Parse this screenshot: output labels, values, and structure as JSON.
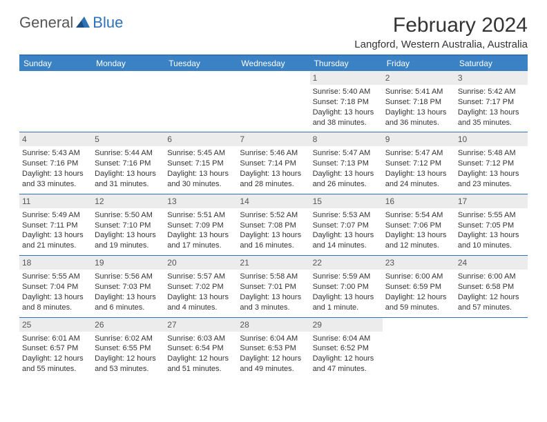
{
  "brand": {
    "general": "General",
    "blue": "Blue"
  },
  "title": "February 2024",
  "location": "Langford, Western Australia, Australia",
  "colors": {
    "accent": "#2d73b8",
    "header_bg": "#3b82c4",
    "daynum_bg": "#ececec",
    "text": "#333333"
  },
  "typography": {
    "title_size": 30,
    "location_size": 15,
    "cell_size": 11
  },
  "calendar": {
    "day_names": [
      "Sunday",
      "Monday",
      "Tuesday",
      "Wednesday",
      "Thursday",
      "Friday",
      "Saturday"
    ],
    "weeks": [
      [
        {
          "num": "",
          "sunrise": "",
          "sunset": "",
          "daylight": ""
        },
        {
          "num": "",
          "sunrise": "",
          "sunset": "",
          "daylight": ""
        },
        {
          "num": "",
          "sunrise": "",
          "sunset": "",
          "daylight": ""
        },
        {
          "num": "",
          "sunrise": "",
          "sunset": "",
          "daylight": ""
        },
        {
          "num": "1",
          "sunrise": "Sunrise: 5:40 AM",
          "sunset": "Sunset: 7:18 PM",
          "daylight": "Daylight: 13 hours and 38 minutes."
        },
        {
          "num": "2",
          "sunrise": "Sunrise: 5:41 AM",
          "sunset": "Sunset: 7:18 PM",
          "daylight": "Daylight: 13 hours and 36 minutes."
        },
        {
          "num": "3",
          "sunrise": "Sunrise: 5:42 AM",
          "sunset": "Sunset: 7:17 PM",
          "daylight": "Daylight: 13 hours and 35 minutes."
        }
      ],
      [
        {
          "num": "4",
          "sunrise": "Sunrise: 5:43 AM",
          "sunset": "Sunset: 7:16 PM",
          "daylight": "Daylight: 13 hours and 33 minutes."
        },
        {
          "num": "5",
          "sunrise": "Sunrise: 5:44 AM",
          "sunset": "Sunset: 7:16 PM",
          "daylight": "Daylight: 13 hours and 31 minutes."
        },
        {
          "num": "6",
          "sunrise": "Sunrise: 5:45 AM",
          "sunset": "Sunset: 7:15 PM",
          "daylight": "Daylight: 13 hours and 30 minutes."
        },
        {
          "num": "7",
          "sunrise": "Sunrise: 5:46 AM",
          "sunset": "Sunset: 7:14 PM",
          "daylight": "Daylight: 13 hours and 28 minutes."
        },
        {
          "num": "8",
          "sunrise": "Sunrise: 5:47 AM",
          "sunset": "Sunset: 7:13 PM",
          "daylight": "Daylight: 13 hours and 26 minutes."
        },
        {
          "num": "9",
          "sunrise": "Sunrise: 5:47 AM",
          "sunset": "Sunset: 7:12 PM",
          "daylight": "Daylight: 13 hours and 24 minutes."
        },
        {
          "num": "10",
          "sunrise": "Sunrise: 5:48 AM",
          "sunset": "Sunset: 7:12 PM",
          "daylight": "Daylight: 13 hours and 23 minutes."
        }
      ],
      [
        {
          "num": "11",
          "sunrise": "Sunrise: 5:49 AM",
          "sunset": "Sunset: 7:11 PM",
          "daylight": "Daylight: 13 hours and 21 minutes."
        },
        {
          "num": "12",
          "sunrise": "Sunrise: 5:50 AM",
          "sunset": "Sunset: 7:10 PM",
          "daylight": "Daylight: 13 hours and 19 minutes."
        },
        {
          "num": "13",
          "sunrise": "Sunrise: 5:51 AM",
          "sunset": "Sunset: 7:09 PM",
          "daylight": "Daylight: 13 hours and 17 minutes."
        },
        {
          "num": "14",
          "sunrise": "Sunrise: 5:52 AM",
          "sunset": "Sunset: 7:08 PM",
          "daylight": "Daylight: 13 hours and 16 minutes."
        },
        {
          "num": "15",
          "sunrise": "Sunrise: 5:53 AM",
          "sunset": "Sunset: 7:07 PM",
          "daylight": "Daylight: 13 hours and 14 minutes."
        },
        {
          "num": "16",
          "sunrise": "Sunrise: 5:54 AM",
          "sunset": "Sunset: 7:06 PM",
          "daylight": "Daylight: 13 hours and 12 minutes."
        },
        {
          "num": "17",
          "sunrise": "Sunrise: 5:55 AM",
          "sunset": "Sunset: 7:05 PM",
          "daylight": "Daylight: 13 hours and 10 minutes."
        }
      ],
      [
        {
          "num": "18",
          "sunrise": "Sunrise: 5:55 AM",
          "sunset": "Sunset: 7:04 PM",
          "daylight": "Daylight: 13 hours and 8 minutes."
        },
        {
          "num": "19",
          "sunrise": "Sunrise: 5:56 AM",
          "sunset": "Sunset: 7:03 PM",
          "daylight": "Daylight: 13 hours and 6 minutes."
        },
        {
          "num": "20",
          "sunrise": "Sunrise: 5:57 AM",
          "sunset": "Sunset: 7:02 PM",
          "daylight": "Daylight: 13 hours and 4 minutes."
        },
        {
          "num": "21",
          "sunrise": "Sunrise: 5:58 AM",
          "sunset": "Sunset: 7:01 PM",
          "daylight": "Daylight: 13 hours and 3 minutes."
        },
        {
          "num": "22",
          "sunrise": "Sunrise: 5:59 AM",
          "sunset": "Sunset: 7:00 PM",
          "daylight": "Daylight: 13 hours and 1 minute."
        },
        {
          "num": "23",
          "sunrise": "Sunrise: 6:00 AM",
          "sunset": "Sunset: 6:59 PM",
          "daylight": "Daylight: 12 hours and 59 minutes."
        },
        {
          "num": "24",
          "sunrise": "Sunrise: 6:00 AM",
          "sunset": "Sunset: 6:58 PM",
          "daylight": "Daylight: 12 hours and 57 minutes."
        }
      ],
      [
        {
          "num": "25",
          "sunrise": "Sunrise: 6:01 AM",
          "sunset": "Sunset: 6:57 PM",
          "daylight": "Daylight: 12 hours and 55 minutes."
        },
        {
          "num": "26",
          "sunrise": "Sunrise: 6:02 AM",
          "sunset": "Sunset: 6:55 PM",
          "daylight": "Daylight: 12 hours and 53 minutes."
        },
        {
          "num": "27",
          "sunrise": "Sunrise: 6:03 AM",
          "sunset": "Sunset: 6:54 PM",
          "daylight": "Daylight: 12 hours and 51 minutes."
        },
        {
          "num": "28",
          "sunrise": "Sunrise: 6:04 AM",
          "sunset": "Sunset: 6:53 PM",
          "daylight": "Daylight: 12 hours and 49 minutes."
        },
        {
          "num": "29",
          "sunrise": "Sunrise: 6:04 AM",
          "sunset": "Sunset: 6:52 PM",
          "daylight": "Daylight: 12 hours and 47 minutes."
        },
        {
          "num": "",
          "sunrise": "",
          "sunset": "",
          "daylight": ""
        },
        {
          "num": "",
          "sunrise": "",
          "sunset": "",
          "daylight": ""
        }
      ]
    ]
  }
}
